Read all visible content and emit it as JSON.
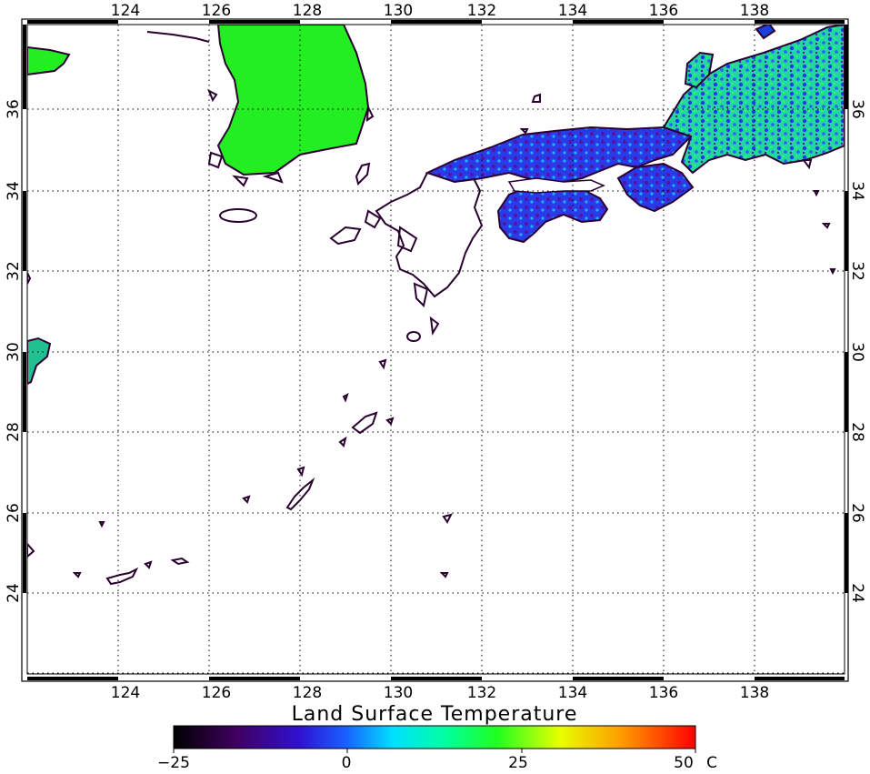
{
  "map": {
    "title": "Land Surface Temperature",
    "lon_range": [
      122,
      140
    ],
    "lat_range": [
      22,
      38
    ],
    "lon_ticks": [
      "124",
      "126",
      "128",
      "130",
      "132",
      "134",
      "136",
      "138"
    ],
    "lat_ticks": [
      "24",
      "26",
      "28",
      "30",
      "32",
      "34",
      "36"
    ],
    "grid": true,
    "grid_style": "dotted"
  },
  "colorbar": {
    "min": -25,
    "max": 50,
    "labels": [
      "−25",
      "0",
      "25",
      "50"
    ],
    "unit": "C",
    "colors": [
      "#000000",
      "#3a0060",
      "#2020ff",
      "#00d8ff",
      "#00ff40",
      "#ffff00",
      "#ff8000",
      "#ff0000"
    ]
  },
  "colors": {
    "coastline": "#2a0030",
    "land_warm": "#22ee22",
    "land_cool": "#1a6cff"
  }
}
